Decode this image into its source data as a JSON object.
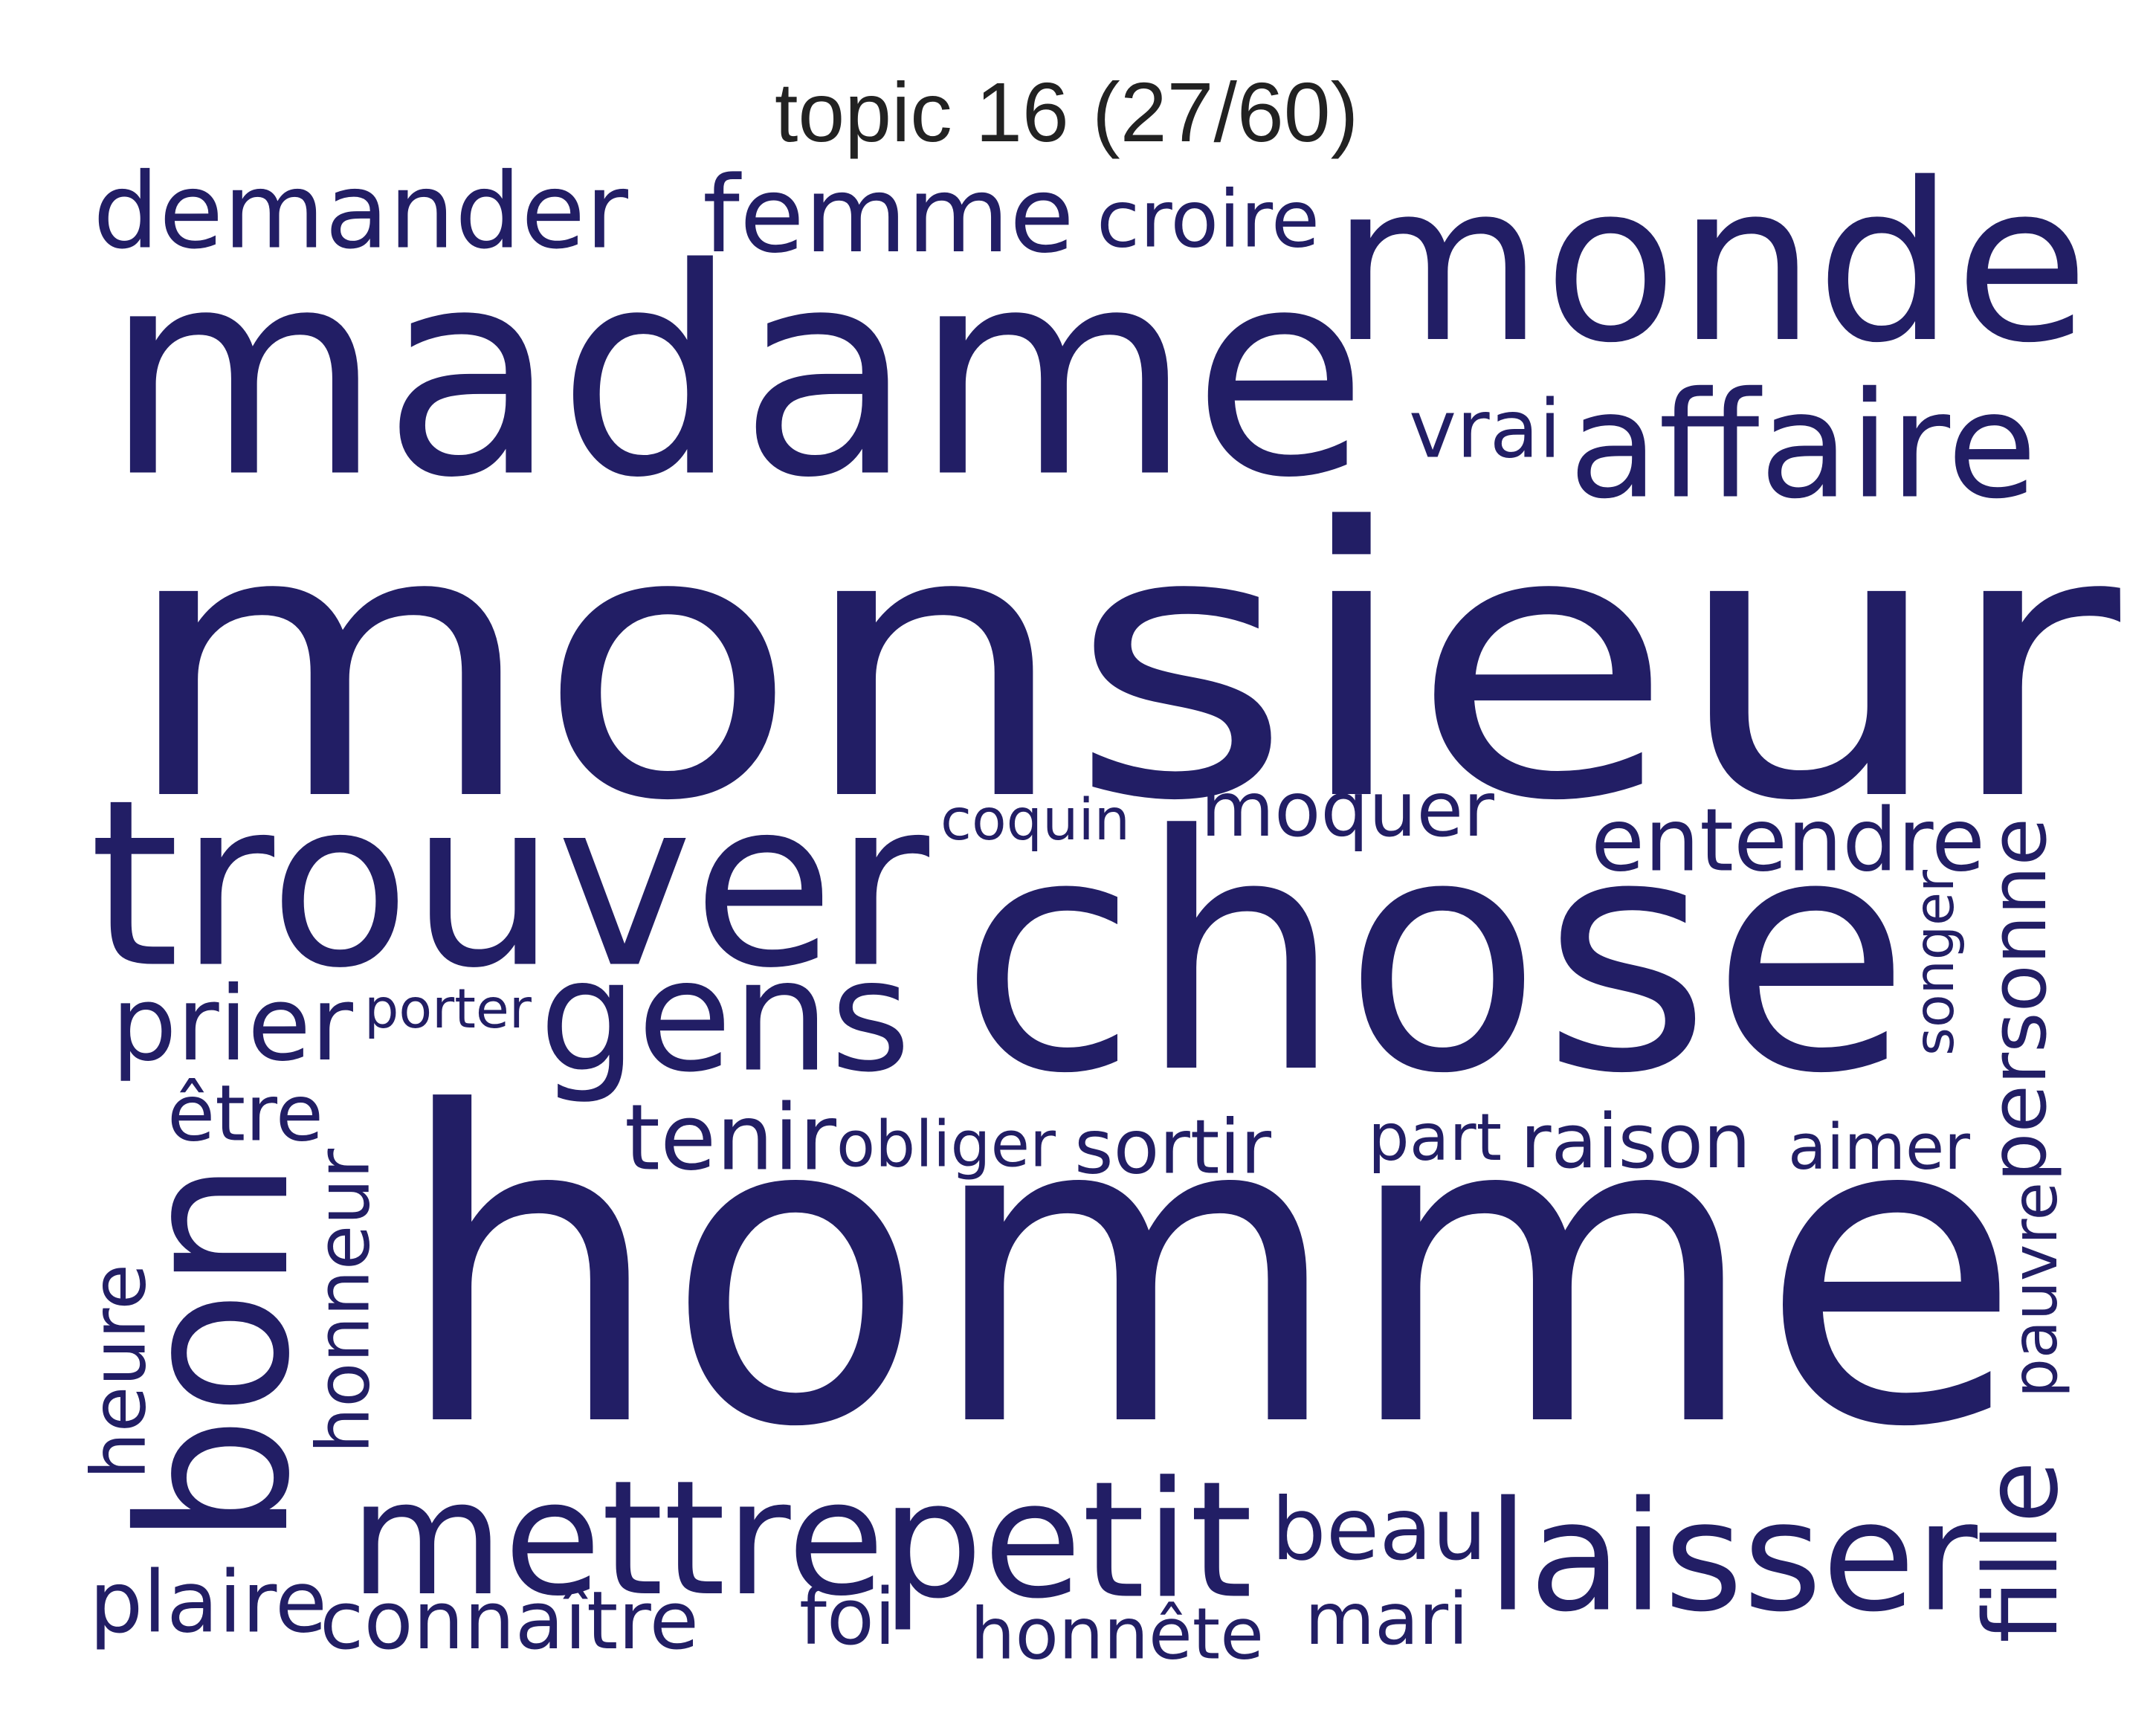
{
  "title": "topic 16 (27/60)",
  "colors": {
    "background": "#ffffff",
    "word": "#221e65",
    "title": "#222222"
  },
  "words": [
    "monsieur",
    "homme",
    "chose",
    "madame",
    "monde",
    "trouver",
    "bon",
    "laisser",
    "petit",
    "mettre",
    "gens",
    "affaire",
    "femme",
    "demander",
    "prier",
    "croire",
    "entendre",
    "personne",
    "beau",
    "moquer",
    "tenir",
    "raison",
    "fille",
    "honneur",
    "plaire",
    "connaître",
    "sortir",
    "vrai",
    "mari",
    "honnête",
    "heure",
    "foi",
    "être",
    "pauvre",
    "obliger",
    "aimer",
    "part",
    "porter",
    "coquin",
    "songer"
  ]
}
